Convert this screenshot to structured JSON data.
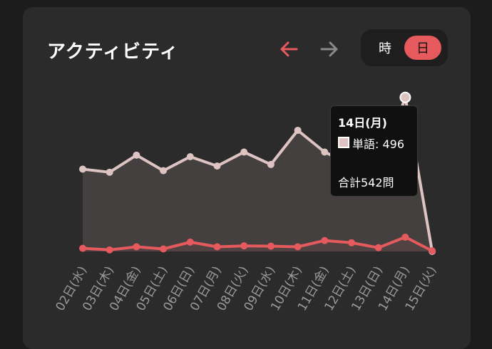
{
  "header": {
    "title": "アクティビティ"
  },
  "toggle": {
    "hour_label": "時",
    "day_label": "日",
    "selected": "日"
  },
  "icons": {
    "prev": "arrow-left-icon",
    "next": "arrow-right-icon"
  },
  "colors": {
    "accent": "#e65a5e",
    "words_series": "#ddc3c1",
    "disabled_arrow": "#8a8a8a"
  },
  "tooltip": {
    "title": "14日(月)",
    "series_label": "単語: 496",
    "total": "合計542問"
  },
  "chart_data": {
    "type": "area",
    "categories": [
      "02日(水)",
      "03日(木)",
      "04日(金)",
      "05日(土)",
      "06日(日)",
      "07日(月)",
      "08日(火)",
      "09日(水)",
      "10日(木)",
      "11日(金)",
      "12日(土)",
      "13日(日)",
      "14日(月)",
      "15日(火)"
    ],
    "series": [
      {
        "name": "単語",
        "values": [
          265,
          255,
          310,
          260,
          305,
          275,
          320,
          280,
          390,
          320,
          280,
          250,
          496,
          0
        ]
      },
      {
        "values": [
          10,
          5,
          15,
          8,
          30,
          15,
          18,
          17,
          15,
          35,
          28,
          12,
          46,
          2
        ]
      }
    ],
    "ylim": [
      0,
      500
    ],
    "grid": false,
    "legend": "none"
  }
}
